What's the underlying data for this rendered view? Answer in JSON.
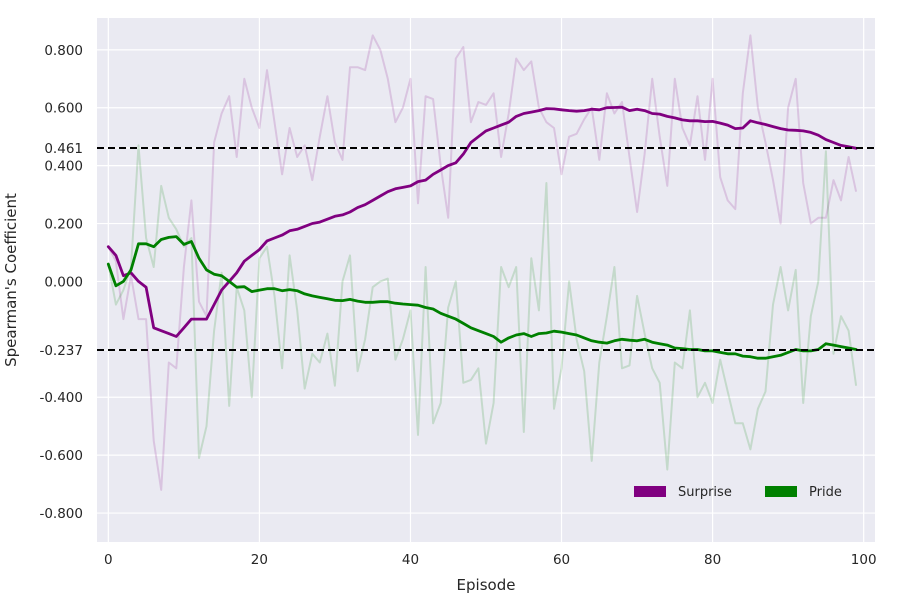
{
  "chart_data": {
    "type": "line",
    "title": "",
    "xlabel": "Episode",
    "ylabel": "Spearman's Coefficient",
    "xlim": [
      -1.5,
      101.5
    ],
    "ylim": [
      -0.9,
      0.91
    ],
    "xticks": [
      0,
      20,
      40,
      60,
      80,
      100
    ],
    "xtick_labels": [
      "0",
      "20",
      "40",
      "60",
      "80",
      "100"
    ],
    "yticks": [
      0.8,
      0.6,
      0.461,
      0.4,
      0.2,
      0.0,
      -0.237,
      -0.4,
      -0.6,
      -0.8
    ],
    "ytick_labels": [
      "0.800",
      "0.600",
      "0.461",
      "0.400",
      "0.200",
      "0.000",
      "-0.237",
      "-0.400",
      "-0.600",
      "-0.800"
    ],
    "grid": true,
    "background": "#eaeaf2",
    "legend_position": "lower-right",
    "reference_lines": [
      {
        "y": 0.461,
        "style": "dashed",
        "color": "#000000"
      },
      {
        "y": -0.237,
        "style": "dashed",
        "color": "#000000"
      }
    ],
    "series": [
      {
        "name": "Surprise",
        "color": "#800080",
        "x": [
          0,
          1,
          2,
          3,
          4,
          5,
          6,
          7,
          8,
          9,
          10,
          11,
          12,
          13,
          14,
          15,
          16,
          17,
          18,
          19,
          20,
          21,
          22,
          23,
          24,
          25,
          26,
          27,
          28,
          29,
          30,
          31,
          32,
          33,
          34,
          35,
          36,
          37,
          38,
          39,
          40,
          41,
          42,
          43,
          44,
          45,
          46,
          47,
          48,
          49,
          50,
          51,
          52,
          53,
          54,
          55,
          56,
          57,
          58,
          59,
          60,
          61,
          62,
          63,
          64,
          65,
          66,
          67,
          68,
          69,
          70,
          71,
          72,
          73,
          74,
          75,
          76,
          77,
          78,
          79,
          80,
          81,
          82,
          83,
          84,
          85,
          86,
          87,
          88,
          89,
          90,
          91,
          92,
          93,
          94,
          95,
          96,
          97,
          98,
          99
        ],
        "smoothed": [
          0.12,
          0.09,
          0.02,
          0.03,
          0.0,
          -0.02,
          -0.16,
          -0.17,
          -0.18,
          -0.19,
          -0.16,
          -0.13,
          -0.13,
          -0.13,
          -0.08,
          -0.03,
          0.0,
          0.03,
          0.07,
          0.09,
          0.11,
          0.14,
          0.15,
          0.16,
          0.175,
          0.18,
          0.19,
          0.2,
          0.205,
          0.215,
          0.225,
          0.23,
          0.24,
          0.255,
          0.265,
          0.28,
          0.295,
          0.31,
          0.32,
          0.325,
          0.33,
          0.345,
          0.35,
          0.37,
          0.385,
          0.4,
          0.41,
          0.44,
          0.48,
          0.5,
          0.52,
          0.53,
          0.54,
          0.55,
          0.57,
          0.58,
          0.585,
          0.59,
          0.597,
          0.596,
          0.593,
          0.59,
          0.588,
          0.59,
          0.595,
          0.593,
          0.6,
          0.601,
          0.602,
          0.59,
          0.595,
          0.59,
          0.58,
          0.578,
          0.57,
          0.565,
          0.558,
          0.555,
          0.555,
          0.552,
          0.553,
          0.547,
          0.54,
          0.528,
          0.53,
          0.555,
          0.548,
          0.542,
          0.535,
          0.528,
          0.523,
          0.522,
          0.52,
          0.515,
          0.505,
          0.49,
          0.48,
          0.47,
          0.465,
          0.46
        ],
        "raw": [
          0.12,
          0.07,
          -0.13,
          0.02,
          -0.13,
          -0.13,
          -0.55,
          -0.72,
          -0.28,
          -0.3,
          0.05,
          0.28,
          -0.07,
          -0.12,
          0.48,
          0.58,
          0.64,
          0.43,
          0.7,
          0.6,
          0.53,
          0.73,
          0.55,
          0.37,
          0.53,
          0.43,
          0.47,
          0.35,
          0.5,
          0.64,
          0.48,
          0.42,
          0.74,
          0.74,
          0.73,
          0.85,
          0.8,
          0.7,
          0.55,
          0.6,
          0.7,
          0.27,
          0.64,
          0.63,
          0.4,
          0.22,
          0.77,
          0.81,
          0.55,
          0.62,
          0.61,
          0.65,
          0.43,
          0.58,
          0.77,
          0.73,
          0.76,
          0.6,
          0.55,
          0.53,
          0.37,
          0.5,
          0.51,
          0.56,
          0.6,
          0.42,
          0.65,
          0.58,
          0.62,
          0.43,
          0.24,
          0.44,
          0.7,
          0.5,
          0.33,
          0.7,
          0.53,
          0.47,
          0.64,
          0.42,
          0.7,
          0.36,
          0.28,
          0.25,
          0.65,
          0.85,
          0.6,
          0.48,
          0.35,
          0.2,
          0.6,
          0.7,
          0.34,
          0.2,
          0.22,
          0.22,
          0.35,
          0.28,
          0.43,
          0.31
        ]
      },
      {
        "name": "Pride",
        "color": "#008000",
        "x": [
          0,
          1,
          2,
          3,
          4,
          5,
          6,
          7,
          8,
          9,
          10,
          11,
          12,
          13,
          14,
          15,
          16,
          17,
          18,
          19,
          20,
          21,
          22,
          23,
          24,
          25,
          26,
          27,
          28,
          29,
          30,
          31,
          32,
          33,
          34,
          35,
          36,
          37,
          38,
          39,
          40,
          41,
          42,
          43,
          44,
          45,
          46,
          47,
          48,
          49,
          50,
          51,
          52,
          53,
          54,
          55,
          56,
          57,
          58,
          59,
          60,
          61,
          62,
          63,
          64,
          65,
          66,
          67,
          68,
          69,
          70,
          71,
          72,
          73,
          74,
          75,
          76,
          77,
          78,
          79,
          80,
          81,
          82,
          83,
          84,
          85,
          86,
          87,
          88,
          89,
          90,
          91,
          92,
          93,
          94,
          95,
          96,
          97,
          98,
          99
        ],
        "smoothed": [
          0.06,
          -0.015,
          0.0,
          0.04,
          0.13,
          0.13,
          0.12,
          0.145,
          0.152,
          0.155,
          0.128,
          0.138,
          0.08,
          0.04,
          0.025,
          0.02,
          0.0,
          -0.02,
          -0.018,
          -0.035,
          -0.03,
          -0.025,
          -0.025,
          -0.032,
          -0.028,
          -0.032,
          -0.043,
          -0.05,
          -0.055,
          -0.06,
          -0.065,
          -0.066,
          -0.062,
          -0.068,
          -0.072,
          -0.072,
          -0.07,
          -0.07,
          -0.075,
          -0.078,
          -0.08,
          -0.082,
          -0.09,
          -0.095,
          -0.11,
          -0.12,
          -0.13,
          -0.145,
          -0.16,
          -0.17,
          -0.18,
          -0.19,
          -0.21,
          -0.195,
          -0.185,
          -0.18,
          -0.19,
          -0.18,
          -0.178,
          -0.172,
          -0.175,
          -0.18,
          -0.185,
          -0.195,
          -0.205,
          -0.21,
          -0.213,
          -0.205,
          -0.2,
          -0.203,
          -0.205,
          -0.2,
          -0.21,
          -0.215,
          -0.22,
          -0.23,
          -0.232,
          -0.235,
          -0.235,
          -0.24,
          -0.24,
          -0.245,
          -0.25,
          -0.25,
          -0.258,
          -0.26,
          -0.265,
          -0.265,
          -0.26,
          -0.255,
          -0.245,
          -0.235,
          -0.24,
          -0.24,
          -0.235,
          -0.215,
          -0.22,
          -0.225,
          -0.23,
          -0.235
        ],
        "raw": [
          0.06,
          -0.08,
          -0.03,
          0.05,
          0.47,
          0.15,
          0.05,
          0.33,
          0.22,
          0.18,
          0.12,
          0.15,
          -0.61,
          -0.5,
          -0.17,
          0.03,
          -0.43,
          -0.02,
          -0.1,
          -0.4,
          0.08,
          0.12,
          -0.05,
          -0.3,
          0.09,
          -0.1,
          -0.37,
          -0.25,
          -0.28,
          -0.18,
          -0.36,
          0.0,
          0.09,
          -0.31,
          -0.2,
          -0.02,
          0.0,
          0.01,
          -0.27,
          -0.2,
          -0.1,
          -0.53,
          0.05,
          -0.49,
          -0.42,
          -0.09,
          0.0,
          -0.35,
          -0.34,
          -0.3,
          -0.56,
          -0.42,
          0.05,
          -0.02,
          0.05,
          -0.52,
          0.08,
          -0.1,
          0.34,
          -0.44,
          -0.3,
          0.0,
          -0.2,
          -0.31,
          -0.62,
          -0.28,
          -0.12,
          0.05,
          -0.3,
          -0.29,
          -0.05,
          -0.18,
          -0.3,
          -0.35,
          -0.65,
          -0.28,
          -0.3,
          -0.1,
          -0.4,
          -0.35,
          -0.42,
          -0.27,
          -0.38,
          -0.49,
          -0.49,
          -0.58,
          -0.44,
          -0.38,
          -0.08,
          0.05,
          -0.1,
          0.04,
          -0.42,
          -0.12,
          0.0,
          0.45,
          -0.25,
          -0.12,
          -0.17,
          -0.36
        ]
      }
    ]
  }
}
